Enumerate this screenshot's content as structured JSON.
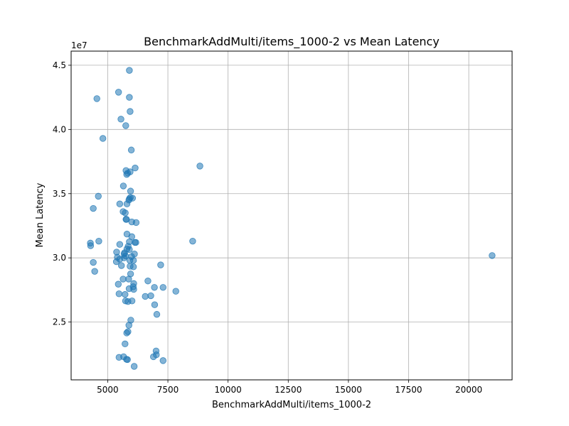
{
  "chart_data": {
    "type": "scatter",
    "title": "BenchmarkAddMulti/items_1000-2 vs Mean Latency",
    "xlabel": "BenchmarkAddMulti/items_1000-2",
    "ylabel": "Mean Latency",
    "y_offset_label": "1e7",
    "y_scale_divisor": 10000000,
    "xlim": [
      3480,
      21800
    ],
    "ylim": [
      20500000,
      46100000
    ],
    "grid": true,
    "marker_color": "#1f77b4",
    "marker_alpha": 0.55,
    "x_ticks": [
      5000,
      7500,
      10000,
      12500,
      15000,
      17500,
      20000
    ],
    "x_tick_labels": [
      "5000",
      "7500",
      "10000",
      "12500",
      "15000",
      "17500",
      "20000"
    ],
    "y_ticks": [
      25000000,
      30000000,
      35000000,
      40000000,
      45000000
    ],
    "y_tick_labels": [
      "2.5",
      "3.0",
      "3.5",
      "4.0",
      "4.5"
    ],
    "points": [
      [
        5900,
        44600000
      ],
      [
        5450,
        42900000
      ],
      [
        5900,
        42500000
      ],
      [
        4550,
        42400000
      ],
      [
        5930,
        41400000
      ],
      [
        5550,
        40800000
      ],
      [
        5750,
        40300000
      ],
      [
        4800,
        39300000
      ],
      [
        5980,
        38400000
      ],
      [
        8830,
        37150000
      ],
      [
        6140,
        37000000
      ],
      [
        5930,
        36700000
      ],
      [
        5760,
        36800000
      ],
      [
        5830,
        36600000
      ],
      [
        5790,
        36500000
      ],
      [
        5650,
        35600000
      ],
      [
        5950,
        35200000
      ],
      [
        4610,
        34800000
      ],
      [
        5940,
        34700000
      ],
      [
        6030,
        34650000
      ],
      [
        5900,
        34600000
      ],
      [
        5880,
        34500000
      ],
      [
        5500,
        34200000
      ],
      [
        5800,
        34200000
      ],
      [
        4400,
        33850000
      ],
      [
        5640,
        33600000
      ],
      [
        5730,
        33500000
      ],
      [
        5780,
        33000000
      ],
      [
        5760,
        33000000
      ],
      [
        6000,
        32800000
      ],
      [
        6180,
        32750000
      ],
      [
        5800,
        31850000
      ],
      [
        6000,
        31650000
      ],
      [
        8530,
        31300000
      ],
      [
        4630,
        31300000
      ],
      [
        5900,
        31250000
      ],
      [
        6130,
        31200000
      ],
      [
        6170,
        31200000
      ],
      [
        4280,
        31150000
      ],
      [
        5500,
        31050000
      ],
      [
        4290,
        30950000
      ],
      [
        5850,
        30900000
      ],
      [
        5800,
        30700000
      ],
      [
        5900,
        30650000
      ],
      [
        5370,
        30450000
      ],
      [
        5700,
        30400000
      ],
      [
        5680,
        30300000
      ],
      [
        6110,
        30300000
      ],
      [
        5740,
        30150000
      ],
      [
        5400,
        30050000
      ],
      [
        5990,
        30100000
      ],
      [
        5680,
        30000000
      ],
      [
        6070,
        29800000
      ],
      [
        5500,
        29900000
      ],
      [
        5920,
        29800000
      ],
      [
        5360,
        29700000
      ],
      [
        4400,
        29650000
      ],
      [
        7200,
        29450000
      ],
      [
        5570,
        29400000
      ],
      [
        5930,
        29350000
      ],
      [
        6070,
        29300000
      ],
      [
        4460,
        28950000
      ],
      [
        5950,
        28750000
      ],
      [
        5640,
        28350000
      ],
      [
        5870,
        28350000
      ],
      [
        6670,
        28200000
      ],
      [
        6080,
        28000000
      ],
      [
        5440,
        27950000
      ],
      [
        6060,
        27750000
      ],
      [
        6940,
        27700000
      ],
      [
        7300,
        27700000
      ],
      [
        6080,
        27550000
      ],
      [
        5890,
        27600000
      ],
      [
        7830,
        27400000
      ],
      [
        5470,
        27200000
      ],
      [
        5720,
        27150000
      ],
      [
        6790,
        27050000
      ],
      [
        6560,
        27000000
      ],
      [
        5740,
        26650000
      ],
      [
        6010,
        26650000
      ],
      [
        5840,
        26600000
      ],
      [
        6950,
        26350000
      ],
      [
        7040,
        25600000
      ],
      [
        5960,
        25150000
      ],
      [
        5880,
        24750000
      ],
      [
        5840,
        24250000
      ],
      [
        5790,
        24150000
      ],
      [
        5720,
        23300000
      ],
      [
        7010,
        22750000
      ],
      [
        7020,
        22450000
      ],
      [
        6900,
        22300000
      ],
      [
        5660,
        22300000
      ],
      [
        5470,
        22250000
      ],
      [
        5780,
        22100000
      ],
      [
        5820,
        22080000
      ],
      [
        7300,
        22000000
      ],
      [
        6100,
        21550000
      ],
      [
        20970,
        30180000
      ]
    ]
  }
}
